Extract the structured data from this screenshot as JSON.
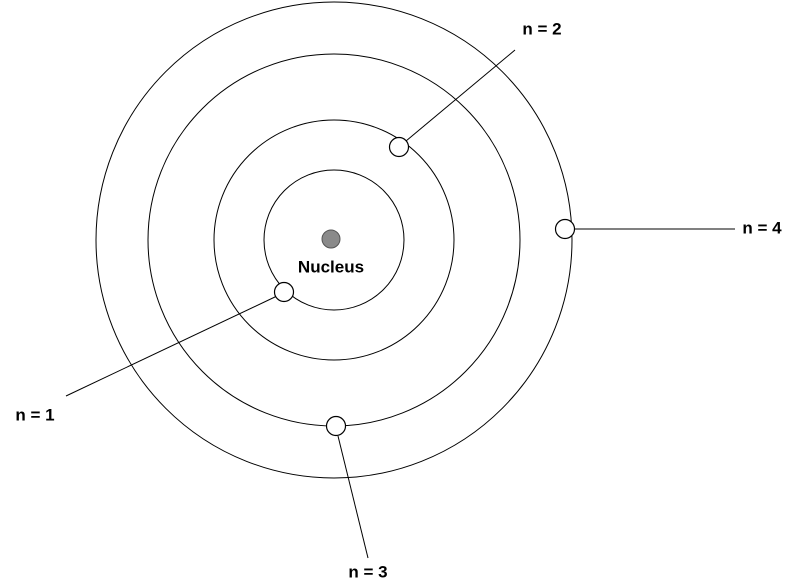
{
  "nucleus": {
    "label": "Nucleus"
  },
  "shells": [
    {
      "label": "n = 1"
    },
    {
      "label": "n = 2"
    },
    {
      "label": "n = 3"
    },
    {
      "label": "n = 4"
    }
  ]
}
